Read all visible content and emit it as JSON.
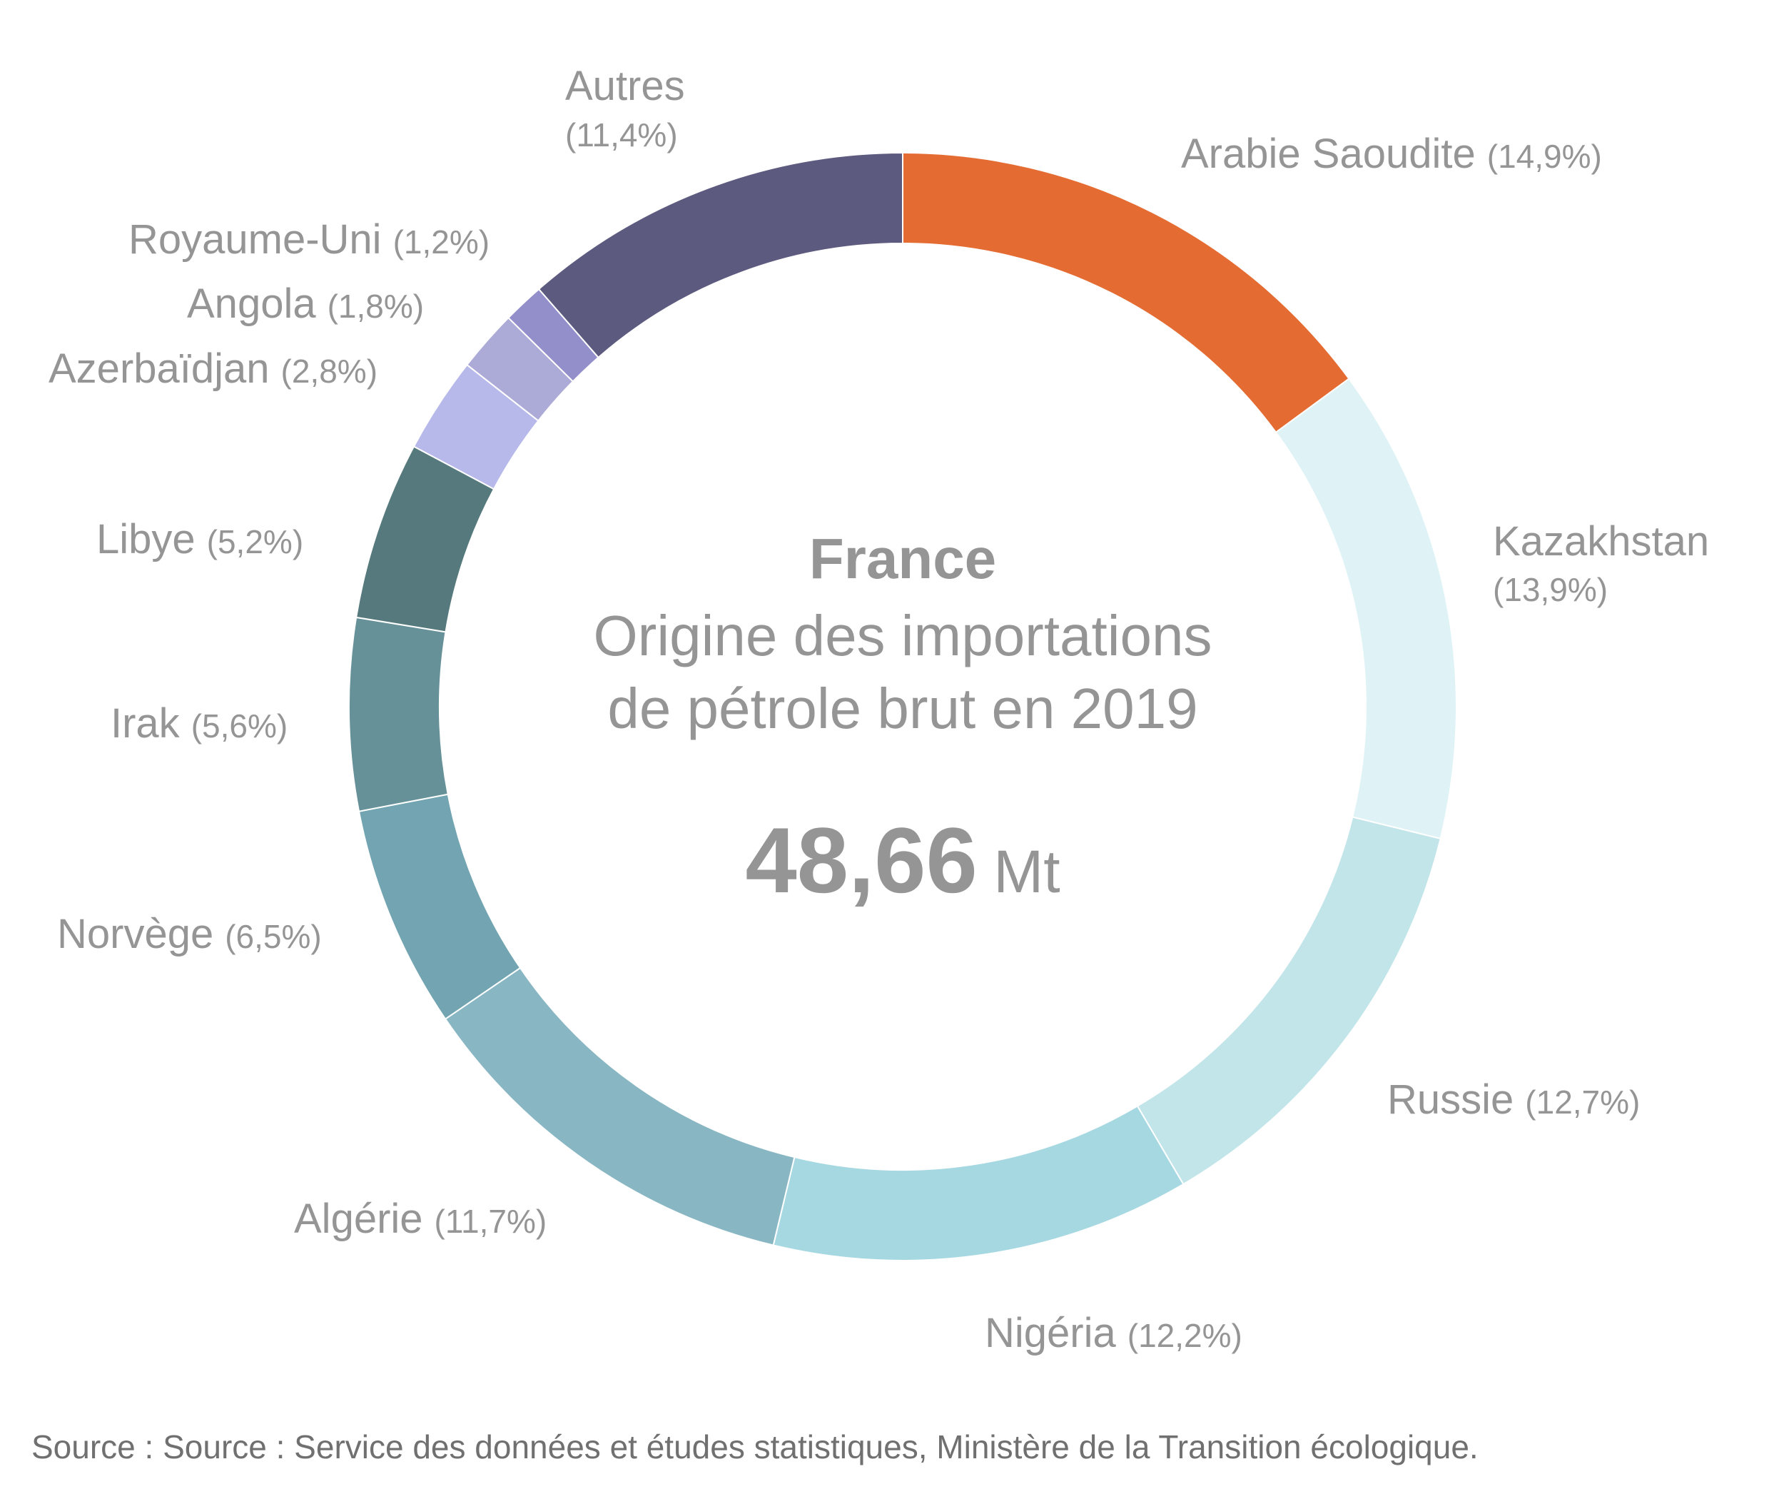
{
  "chart_data": {
    "type": "pie",
    "variant": "donut",
    "country": "France",
    "title_lines": [
      "Origine des importations",
      "de pétrole brut en 2019"
    ],
    "total": "48,66",
    "unit": "Mt",
    "slices": [
      {
        "name": "Arabie Saoudite",
        "value": 14.9,
        "label": "(14,9%)",
        "color": "#E46C32"
      },
      {
        "name": "Kazakhstan",
        "value": 13.9,
        "label": "(13,9%)",
        "color": "#DFF3F6"
      },
      {
        "name": "Russie",
        "value": 12.7,
        "label": "(12,7%)",
        "color": "#C2E5EA"
      },
      {
        "name": "Nigéria",
        "value": 12.2,
        "label": "(12,2%)",
        "color": "#A6D8E2"
      },
      {
        "name": "Algérie",
        "value": 11.7,
        "label": "(11,7%)",
        "color": "#88B7C3"
      },
      {
        "name": "Norvège",
        "value": 6.5,
        "label": "(6,5%)",
        "color": "#72A5B1"
      },
      {
        "name": "Irak",
        "value": 5.6,
        "label": "(5,6%)",
        "color": "#679199"
      },
      {
        "name": "Libye",
        "value": 5.2,
        "label": "(5,2%)",
        "color": "#55797C"
      },
      {
        "name": "Azerbaïdjan",
        "value": 2.8,
        "label": "(2,8%)",
        "color": "#B7B9EA"
      },
      {
        "name": "Angola",
        "value": 1.8,
        "label": "(1,8%)",
        "color": "#ACAAD6"
      },
      {
        "name": "Royaume-Uni",
        "value": 1.2,
        "label": "(1,2%)",
        "color": "#938FCB"
      },
      {
        "name": "Autres",
        "value": 11.4,
        "label": "(11,4%)",
        "color": "#5C5A7E"
      }
    ]
  },
  "source": "Source : Source : Service des données et études statistiques, Ministère de la Transition écologique."
}
